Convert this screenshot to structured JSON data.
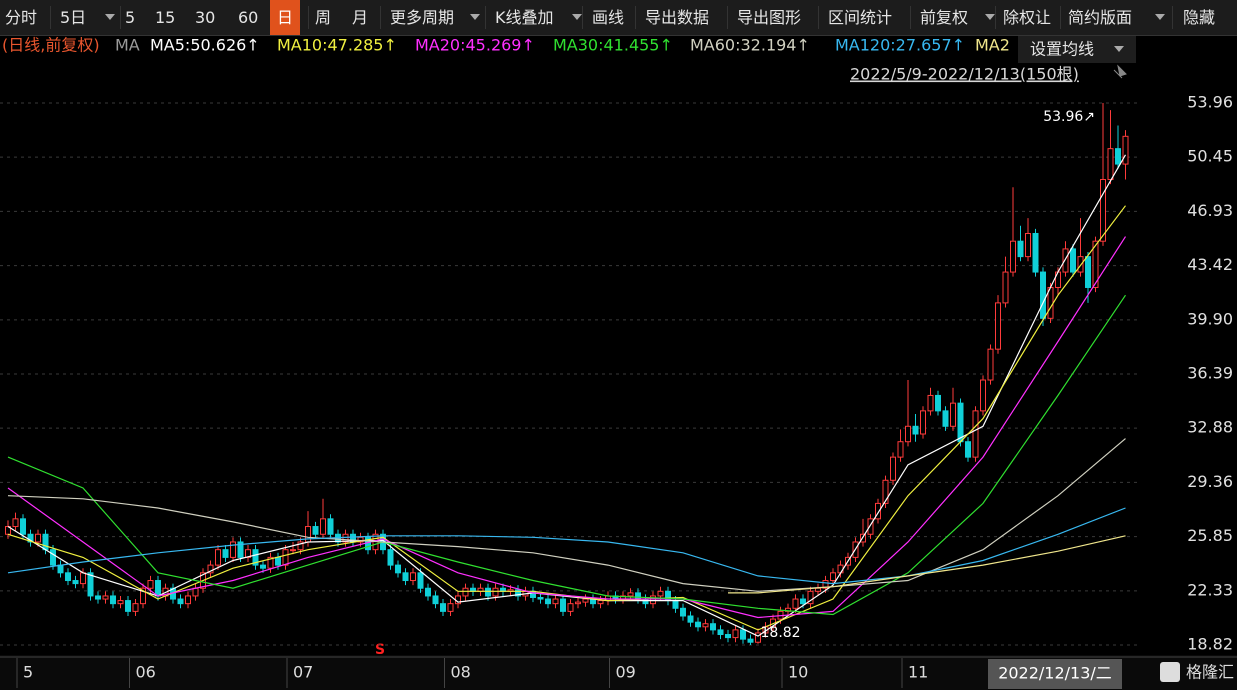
{
  "toolbar": [
    "分时",
    "5日",
    "5",
    "15",
    "30",
    "60",
    "日",
    "周",
    "月",
    "更多周期",
    "K线叠加",
    "画线",
    "导出数据",
    "导出图形",
    "区间统计",
    "前复权",
    "除权让",
    "简约版面",
    "隐藏"
  ],
  "selected_tool": 6,
  "chart_data": {
    "type": "candlestick",
    "subtitle": "(日线,前复权)",
    "ma_label": "MA",
    "settings_button": "设置均线",
    "range_label": "2022/5/9-2022/12/13(150根)",
    "cursor_date": "2022/12/13/二",
    "signal": "S",
    "logo": "格隆汇",
    "up_color": "#ff3b3b",
    "down_color": "#10d0d8",
    "grid": true,
    "ylim": [
      18.82,
      53.96
    ],
    "yticks": [
      18.82,
      22.33,
      25.85,
      29.36,
      {
        "value": 32.88,
        "label": "32.88"
      },
      {
        "value": 36.39,
        "label": "36.39"
      },
      {
        "value": 39.9,
        "label": "39.90"
      },
      {
        "value": 43.42,
        "label": "43.42"
      },
      {
        "value": 46.93,
        "label": "46.93"
      },
      {
        "value": 50.45,
        "label": "50.45"
      },
      53.96
    ],
    "xlim": [
      0,
      149
    ],
    "xticks": [
      {
        "value": 2,
        "label": "5"
      },
      {
        "value": 17,
        "label": "06"
      },
      {
        "value": 38,
        "label": "07"
      },
      {
        "value": 59,
        "label": "08"
      },
      {
        "value": 81,
        "label": "09"
      },
      {
        "value": 104,
        "label": "10"
      },
      {
        "value": 120,
        "label": "11"
      }
    ],
    "annotations": [
      {
        "label": "53.96↗",
        "value": 53.96
      },
      {
        "label": "18.82",
        "value": 18.82
      }
    ],
    "candles": [
      [
        26,
        26.9,
        25.7,
        26.5
      ],
      [
        26.5,
        27.4,
        26.2,
        27
      ],
      [
        27,
        27.3,
        25.7,
        26
      ],
      [
        26,
        26.3,
        25.2,
        25.5
      ],
      [
        25.5,
        26.3,
        25.2,
        26
      ],
      [
        26,
        26.3,
        24.7,
        25
      ],
      [
        25,
        25.3,
        23.7,
        24
      ],
      [
        24,
        24.3,
        23.2,
        23.5
      ],
      [
        23.5,
        23.8,
        22.7,
        23
      ],
      [
        23,
        23.3,
        22.5,
        22.8
      ],
      [
        22.8,
        23.8,
        22.5,
        23.5
      ],
      [
        23.5,
        23.8,
        21.7,
        22
      ],
      [
        22,
        22.3,
        21.5,
        21.8
      ],
      [
        21.8,
        22.3,
        21.5,
        22
      ],
      [
        22,
        22.3,
        21.2,
        21.5
      ],
      [
        21.5,
        22,
        21.2,
        21.7
      ],
      [
        21.7,
        22,
        20.7,
        21
      ],
      [
        21,
        21.8,
        20.7,
        21.5
      ],
      [
        21.5,
        22.8,
        21.2,
        22.5
      ],
      [
        22.5,
        23.3,
        22.2,
        23
      ],
      [
        23,
        23.3,
        21.7,
        22
      ],
      [
        22,
        22.8,
        21.7,
        22.5
      ],
      [
        22.5,
        22.8,
        21.5,
        21.8
      ],
      [
        21.8,
        22.1,
        21.2,
        21.5
      ],
      [
        21.5,
        22.3,
        21.2,
        22
      ],
      [
        22,
        22.8,
        21.7,
        22.5
      ],
      [
        22.5,
        23.8,
        22.2,
        23.5
      ],
      [
        23.5,
        24.3,
        23.2,
        24
      ],
      [
        24,
        25.3,
        23.7,
        25
      ],
      [
        25,
        25.3,
        24.2,
        24.5
      ],
      [
        24.5,
        25.8,
        24.2,
        25.5
      ],
      [
        25.5,
        25.8,
        24.2,
        24.5
      ],
      [
        24.5,
        25.3,
        24.2,
        25
      ],
      [
        25,
        25.3,
        23.7,
        24
      ],
      [
        24,
        24.3,
        23.5,
        23.8
      ],
      [
        23.8,
        24.8,
        23.5,
        24.5
      ],
      [
        24.5,
        24.8,
        23.7,
        24
      ],
      [
        24,
        25.3,
        23.7,
        25
      ],
      [
        25,
        25.5,
        24.7,
        25
      ],
      [
        25,
        25.8,
        24.7,
        25.5
      ],
      [
        25.5,
        27.5,
        25.2,
        26.5
      ],
      [
        26.5,
        26.8,
        25.7,
        26
      ],
      [
        26,
        28.3,
        25.7,
        27
      ],
      [
        27,
        27.3,
        25.7,
        26
      ],
      [
        26,
        26.3,
        25.2,
        25.5
      ],
      [
        25.5,
        26.3,
        25.2,
        26
      ],
      [
        26,
        26.3,
        25.2,
        25.5
      ],
      [
        25.5,
        26.1,
        25.2,
        25.8
      ],
      [
        25.8,
        26.1,
        24.7,
        25
      ],
      [
        25,
        26.3,
        24.7,
        26
      ],
      [
        26,
        26.3,
        24.7,
        25
      ],
      [
        25,
        25.3,
        23.7,
        24
      ],
      [
        24,
        24.3,
        23.2,
        23.5
      ],
      [
        23.5,
        23.8,
        22.7,
        23
      ],
      [
        23,
        23.8,
        22.7,
        23.5
      ],
      [
        23.5,
        23.8,
        22.2,
        22.5
      ],
      [
        22.5,
        22.8,
        21.7,
        22
      ],
      [
        22,
        22.3,
        21.2,
        21.5
      ],
      [
        21.5,
        21.8,
        20.7,
        21
      ],
      [
        21,
        21.8,
        20.7,
        21.5
      ],
      [
        21.5,
        22.3,
        21.2,
        22
      ],
      [
        22,
        22.8,
        21.7,
        22.5
      ],
      [
        22.5,
        22.8,
        22,
        22.3
      ],
      [
        22.3,
        22.8,
        22,
        22.5
      ],
      [
        22.5,
        22.8,
        21.7,
        22
      ],
      [
        22,
        22.8,
        21.7,
        22.5
      ],
      [
        22.5,
        22.8,
        22,
        22.3
      ],
      [
        22.3,
        22.7,
        22,
        22.4
      ],
      [
        22.4,
        22.7,
        21.7,
        22
      ],
      [
        22,
        22.6,
        21.7,
        22.3
      ],
      [
        22.3,
        22.6,
        21.6,
        21.9
      ],
      [
        21.9,
        22.2,
        21.5,
        21.8
      ],
      [
        21.8,
        22.1,
        21.2,
        21.5
      ],
      [
        21.5,
        22.1,
        21.2,
        21.8
      ],
      [
        21.8,
        22.1,
        20.7,
        21
      ],
      [
        21,
        21.8,
        20.7,
        21.5
      ],
      [
        21.5,
        21.9,
        21.2,
        21.6
      ],
      [
        21.6,
        22.1,
        21.3,
        21.8
      ],
      [
        21.8,
        22.1,
        21.2,
        21.5
      ],
      [
        21.5,
        22,
        21.2,
        21.7
      ],
      [
        21.7,
        22.3,
        21.4,
        22
      ],
      [
        22,
        22.3,
        21.5,
        21.8
      ],
      [
        21.8,
        22.3,
        21.5,
        22
      ],
      [
        22,
        22.5,
        21.7,
        22.2
      ],
      [
        22.2,
        22.5,
        21.5,
        21.8
      ],
      [
        21.8,
        22.1,
        21.2,
        21.5
      ],
      [
        21.5,
        22.3,
        21.2,
        22
      ],
      [
        22,
        22.6,
        21.7,
        22.3
      ],
      [
        22.3,
        22.6,
        21.4,
        21.7
      ],
      [
        21.7,
        22,
        20.9,
        21.2
      ],
      [
        21.2,
        21.5,
        20.4,
        20.7
      ],
      [
        20.7,
        21,
        20,
        20.3
      ],
      [
        20.3,
        20.6,
        19.7,
        20
      ],
      [
        20,
        20.5,
        19.7,
        20.2
      ],
      [
        20.2,
        20.5,
        19.5,
        19.8
      ],
      [
        19.8,
        20.1,
        19.2,
        19.5
      ],
      [
        19.5,
        19.8,
        19,
        19.3
      ],
      [
        19.3,
        20.1,
        19,
        19.8
      ],
      [
        19.8,
        20.1,
        18.9,
        19.2
      ],
      [
        19.2,
        19.5,
        18.82,
        19
      ],
      [
        19,
        19.9,
        18.9,
        19.6
      ],
      [
        19.6,
        20.3,
        19.3,
        20
      ],
      [
        20,
        20.8,
        19.7,
        20.5
      ],
      [
        20.5,
        21.3,
        20.2,
        21
      ],
      [
        21,
        21.5,
        20.7,
        21.2
      ],
      [
        21.2,
        22.1,
        20.9,
        21.8
      ],
      [
        21.8,
        22.1,
        21.2,
        21.5
      ],
      [
        21.5,
        22.6,
        21.2,
        22.3
      ],
      [
        22.3,
        22.8,
        22,
        22.5
      ],
      [
        22.5,
        23.3,
        22.2,
        23
      ],
      [
        23,
        23.8,
        22.7,
        23.5
      ],
      [
        23.5,
        24.3,
        23.2,
        24
      ],
      [
        24,
        24.8,
        23.7,
        24.5
      ],
      [
        24.5,
        25.8,
        24.2,
        25.5
      ],
      [
        25.5,
        27,
        25.2,
        26
      ],
      [
        26,
        27.3,
        25.7,
        27
      ],
      [
        27,
        28.3,
        26.7,
        28
      ],
      [
        28,
        29.8,
        27.7,
        29.5
      ],
      [
        29.5,
        31.3,
        29.2,
        31
      ],
      [
        31,
        32.8,
        30.7,
        32
      ],
      [
        32,
        36,
        31.7,
        33
      ],
      [
        33,
        33.8,
        32,
        32.5
      ],
      [
        32.5,
        34.3,
        32.2,
        34
      ],
      [
        34,
        35.5,
        33.7,
        35
      ],
      [
        35,
        35.3,
        33.7,
        34
      ],
      [
        34,
        34.3,
        32.7,
        33
      ],
      [
        33,
        35.5,
        32.7,
        34.5
      ],
      [
        34.5,
        34.8,
        31.7,
        32
      ],
      [
        32,
        32.3,
        30.7,
        31
      ],
      [
        31,
        34.3,
        30.7,
        34
      ],
      [
        34,
        36.3,
        33.7,
        36
      ],
      [
        36,
        38.3,
        35.7,
        38
      ],
      [
        38,
        41.5,
        37.7,
        41
      ],
      [
        41,
        44,
        40.7,
        43
      ],
      [
        43,
        48.5,
        42.7,
        45
      ],
      [
        45,
        46,
        43.7,
        44
      ],
      [
        44,
        46.5,
        43.7,
        45.5
      ],
      [
        45.5,
        45.8,
        42.7,
        43
      ],
      [
        43,
        43.3,
        39.5,
        40
      ],
      [
        40,
        42.3,
        39.7,
        42
      ],
      [
        42,
        43.3,
        41.5,
        43
      ],
      [
        43,
        45,
        42.7,
        44.5
      ],
      [
        44.5,
        44.8,
        42.7,
        43
      ],
      [
        43,
        46.5,
        42.7,
        44
      ],
      [
        44,
        44.3,
        41,
        42
      ],
      [
        42,
        45.3,
        41.7,
        45
      ],
      [
        45,
        53.96,
        44.7,
        49
      ],
      [
        49,
        53.5,
        48.7,
        51
      ],
      [
        51,
        52.5,
        49.7,
        50
      ],
      [
        50,
        52.2,
        49,
        51.8
      ]
    ],
    "series": [
      {
        "name": "MA5:50.626↑",
        "color": "#ffffff",
        "x": [
          0,
          10,
          20,
          30,
          40,
          50,
          60,
          70,
          80,
          90,
          100,
          110,
          120,
          130,
          140,
          149
        ],
        "values": [
          26.5,
          23.5,
          22,
          24.3,
          25.5,
          25.6,
          21.6,
          22.2,
          21.7,
          21.7,
          19.4,
          22.7,
          30.5,
          33,
          43,
          50.6
        ]
      },
      {
        "name": "MA10:47.285↑",
        "color": "#f0f040",
        "x": [
          0,
          10,
          20,
          30,
          40,
          50,
          60,
          70,
          80,
          90,
          100,
          110,
          120,
          130,
          140,
          149
        ],
        "values": [
          26,
          24.5,
          21.8,
          23.8,
          25,
          25.8,
          22.3,
          22.3,
          21.7,
          21.9,
          19.8,
          21.8,
          28.5,
          33.5,
          41.5,
          47.3
        ]
      },
      {
        "name": "MA20:45.269↑",
        "color": "#ff30ff",
        "x": [
          0,
          10,
          20,
          30,
          40,
          50,
          60,
          70,
          80,
          90,
          100,
          110,
          120,
          130,
          140,
          149
        ],
        "values": [
          29,
          25.5,
          22,
          23,
          24.5,
          25.7,
          23.5,
          22.2,
          21.8,
          21.8,
          20.6,
          21,
          25.5,
          31,
          38.5,
          45.3
        ]
      },
      {
        "name": "MA30:41.455↑",
        "color": "#30e030",
        "x": [
          0,
          10,
          20,
          30,
          40,
          50,
          60,
          70,
          80,
          90,
          100,
          110,
          120,
          130,
          140,
          149
        ],
        "values": [
          31,
          29,
          23.5,
          22.5,
          24,
          25.5,
          24.2,
          23,
          22,
          21.8,
          21.2,
          20.8,
          23.5,
          28,
          35,
          41.5
        ]
      },
      {
        "name": "MA60:32.194↑",
        "color": "#d0d0c0",
        "x": [
          0,
          10,
          20,
          30,
          40,
          50,
          60,
          70,
          80,
          90,
          100,
          110,
          120,
          130,
          140,
          149
        ],
        "values": [
          28.5,
          28.3,
          27.7,
          26.8,
          25.8,
          25.5,
          25.2,
          24.8,
          24,
          22.8,
          22.3,
          22.6,
          23,
          25,
          28.5,
          32.2
        ]
      },
      {
        "name": "MA120:27.657↑",
        "color": "#38b8f0",
        "x": [
          0,
          10,
          20,
          30,
          40,
          50,
          60,
          70,
          80,
          90,
          100,
          110,
          120,
          130,
          140,
          149
        ],
        "values": [
          23.5,
          24.2,
          24.8,
          25.3,
          25.7,
          25.9,
          25.9,
          25.8,
          25.5,
          24.8,
          23.3,
          22.8,
          23.3,
          24.3,
          26,
          27.7
        ]
      },
      {
        "name": "MA2",
        "color": "#f0e68c",
        "x": [
          96,
          100,
          110,
          120,
          130,
          140,
          149
        ],
        "values": [
          22.2,
          22.2,
          22.6,
          23.3,
          24,
          24.9,
          25.9
        ]
      }
    ]
  }
}
